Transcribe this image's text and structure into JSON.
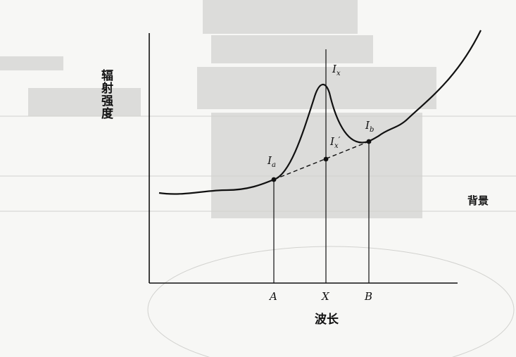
{
  "diagram": {
    "y_axis_label": "辐射强度",
    "x_axis_label": "波长",
    "background_label": "背景",
    "points": {
      "a": {
        "main": "I",
        "sub": "a"
      },
      "x": {
        "main": "I",
        "sub": "x"
      },
      "x_prime": {
        "main": "I",
        "sub": "x",
        "mark": "′"
      },
      "b": {
        "main": "I",
        "sub": "b"
      }
    },
    "x_ticks": {
      "a": "A",
      "x": "X",
      "b": "B"
    }
  },
  "colors": {
    "ink": "#111111",
    "paper": "#f7f7f5",
    "bleed": "#d9d9d6"
  }
}
